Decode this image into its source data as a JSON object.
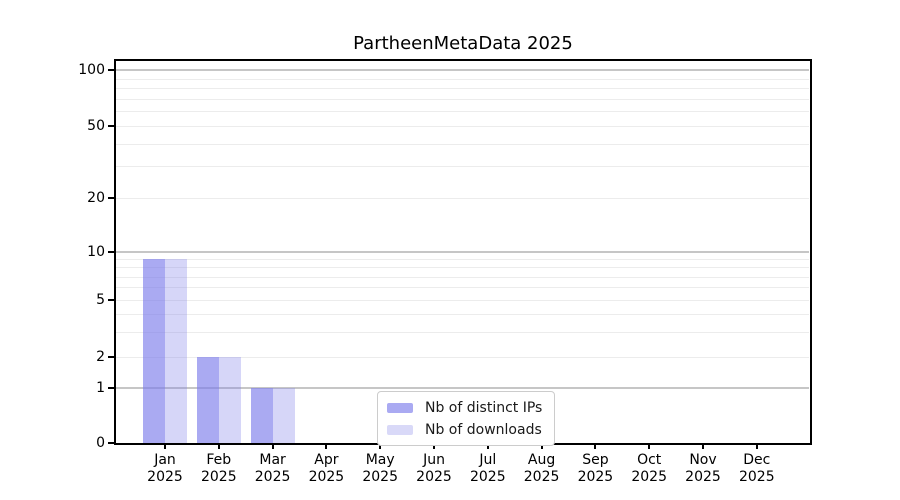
{
  "chart_data": {
    "type": "bar",
    "title": "PartheenMetaData 2025",
    "categories": [
      "Jan 2025",
      "Feb 2025",
      "Mar 2025",
      "Apr 2025",
      "May 2025",
      "Jun 2025",
      "Jul 2025",
      "Aug 2025",
      "Sep 2025",
      "Oct 2025",
      "Nov 2025",
      "Dec 2025"
    ],
    "series": [
      {
        "name": "Nb of distinct IPs",
        "color": "#aaaaf2",
        "fill": "rgba(124,124,235,0.65)",
        "values": [
          9,
          2,
          1,
          0,
          0,
          0,
          0,
          0,
          0,
          0,
          0,
          0
        ]
      },
      {
        "name": "Nb of downloads",
        "color": "#d9d9f8",
        "fill": "rgba(128,128,232,0.32)",
        "values": [
          9,
          2,
          1,
          0,
          0,
          0,
          0,
          0,
          0,
          0,
          0,
          0
        ]
      }
    ],
    "yticks": [
      0,
      1,
      2,
      5,
      10,
      20,
      50,
      100
    ],
    "ylim": [
      0,
      100
    ],
    "yscale": "symlog",
    "xlabel": "",
    "ylabel": "",
    "grid": {
      "major_values": [
        1,
        10,
        100
      ],
      "minor_values": [
        2,
        3,
        4,
        5,
        6,
        7,
        8,
        9,
        20,
        30,
        40,
        50,
        60,
        70,
        80,
        90
      ],
      "major_color": "#c6c6c6",
      "minor_color": "#ececec"
    },
    "legend": {
      "position": "lower center",
      "border_color": "#cccccc"
    }
  }
}
